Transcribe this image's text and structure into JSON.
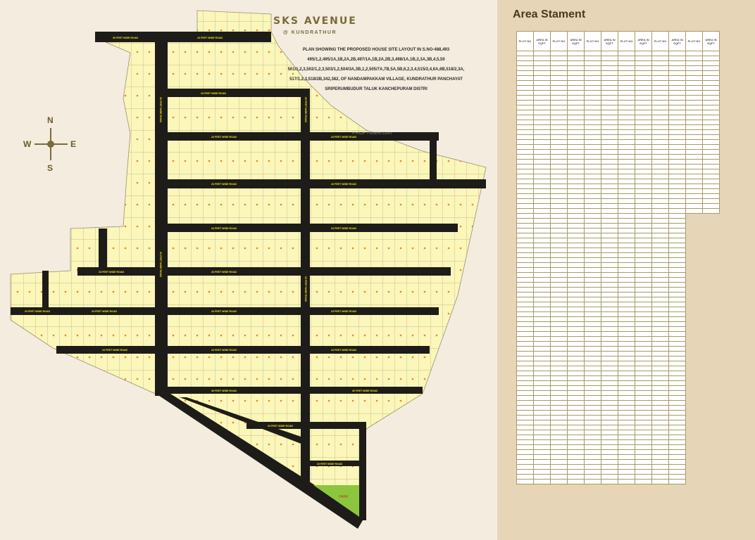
{
  "brand": {
    "title": "SKS AVENUE",
    "subtitle": "@ KUNDRATHUR"
  },
  "plan_description": [
    "PLAN SHOWING THE PROPOSED HOUSE SITE LAYOUT IN S.NO-488,493",
    "495/1,2,495/1A,1B,2A,2B,497/1A,1B,2A,2B,3,498/1A,1B,2,3A,3B,4,5,50",
    "501/1,2,3,502/1,2,3,503/1,2,504/3A,3B,1,2,505/7A,7B,5A,5B,6,2,3,4,515/2,4,6A,6B,518/2,3A,",
    "517/1,2,3,518/2B,342,382, OF NANDAMPAKKAM VILLAGE, KUNDRATHUR PANCHAYAT",
    "SRIPERUMBUDUR TALUK KANCHEPURAM DISTRI"
  ],
  "compass": {
    "n": "N",
    "s": "S",
    "e": "E",
    "w": "W"
  },
  "roads": {
    "wide": "30 FEET WIDE ROAD",
    "standard": "23 FEET WIDE ROAD"
  },
  "park_label": "PARK",
  "watermark": "PROPTIGER.com",
  "colors": {
    "plot": "#fbf6b9",
    "road": "#1e1c18",
    "park": "#8cc63e",
    "background": "#f4ecdf",
    "panel": "#e6d6b7"
  },
  "area_statement": {
    "title": "Area Stament",
    "headers": [
      "PLOT NO",
      "AREA IN SQFT",
      "PLOT NO",
      "AREA IN SQFT",
      "PLOT NO",
      "AREA IN SQFT",
      "PLOT NO",
      "AREA IN SQFT",
      "PLOT NO",
      "AREA IN SQFT",
      "PLOT NO",
      "AREA IN SQFT"
    ]
  }
}
